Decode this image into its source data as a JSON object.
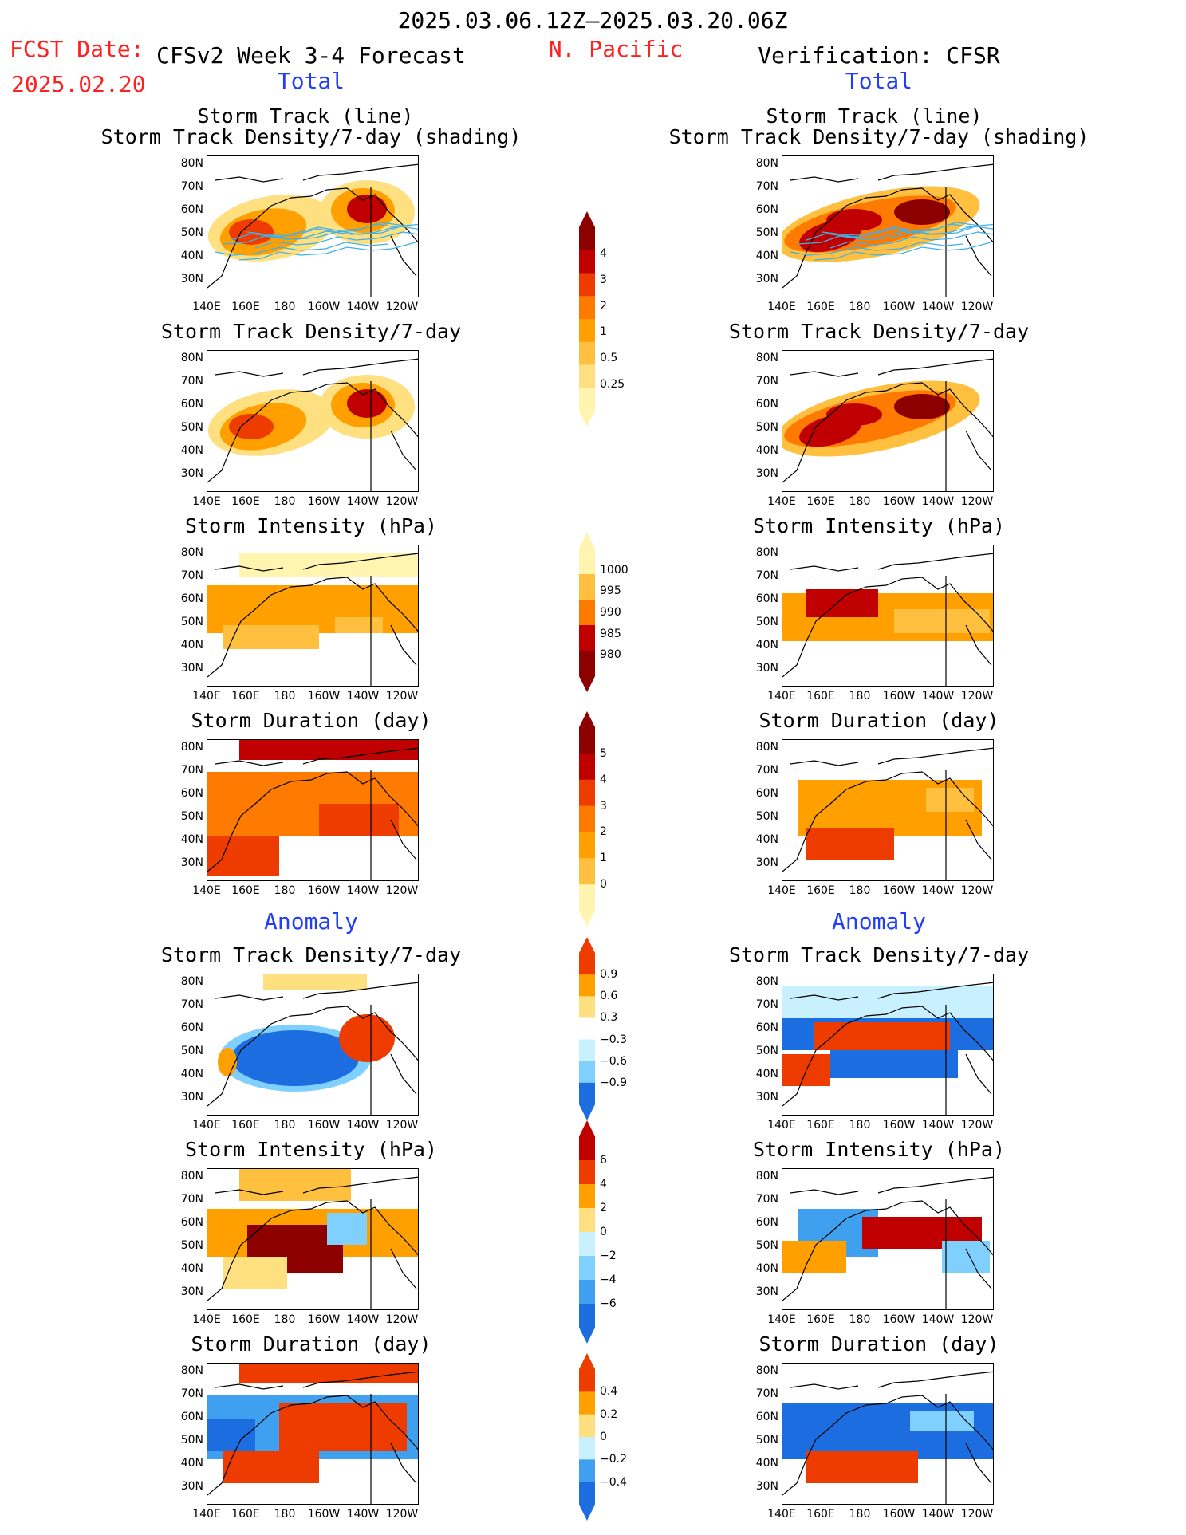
{
  "header": {
    "date_range": "2025.03.06.12Z–2025.03.20.06Z",
    "region": "N. Pacific",
    "fcst_label": "FCST Date:",
    "fcst_date": "2025.02.20",
    "left_title": "CFSv2 Week 3-4 Forecast",
    "right_title": "Verification: CFSR",
    "total_label": "Total",
    "anomaly_label": "Anomaly"
  },
  "panel_titles": {
    "storm_track_line": "Storm Track (line)",
    "storm_track_shading": "Storm Track Density/7-day (shading)",
    "density": "Storm Track Density/7-day",
    "intensity": "Storm Intensity (hPa)",
    "duration": "Storm Duration (day)"
  },
  "axes": {
    "lat_ticks": [
      "80N",
      "70N",
      "60N",
      "50N",
      "40N",
      "30N"
    ],
    "lon_ticks": [
      "140E",
      "160E",
      "180",
      "160W",
      "140W",
      "120W"
    ]
  },
  "colorbars": {
    "density_total": [
      "4",
      "3",
      "2",
      "1",
      "0.5",
      "0.25"
    ],
    "intensity_total": [
      "1000",
      "995",
      "990",
      "985",
      "980"
    ],
    "duration_total": [
      "5",
      "4",
      "3",
      "2",
      "1",
      "0"
    ],
    "density_anom": [
      "0.9",
      "0.6",
      "0.3",
      "−0.3",
      "−0.6",
      "−0.9"
    ],
    "intensity_anom": [
      "6",
      "4",
      "2",
      "0",
      "−2",
      "−4",
      "−6"
    ],
    "duration_anom": [
      "0.4",
      "0.2",
      "0",
      "−0.2",
      "−0.4"
    ]
  },
  "colors": {
    "warm": [
      "#fff5b0",
      "#ffe080",
      "#ffc040",
      "#ffa000",
      "#ff7a00",
      "#ee3c00",
      "#c00000",
      "#8c0000"
    ],
    "cool": [
      "#c8f0ff",
      "#80d0ff",
      "#40a0f0",
      "#1c6ee0"
    ],
    "track_line": "#40b0e8",
    "title_red": "#ff2020",
    "title_blue": "#1f3cff"
  }
}
